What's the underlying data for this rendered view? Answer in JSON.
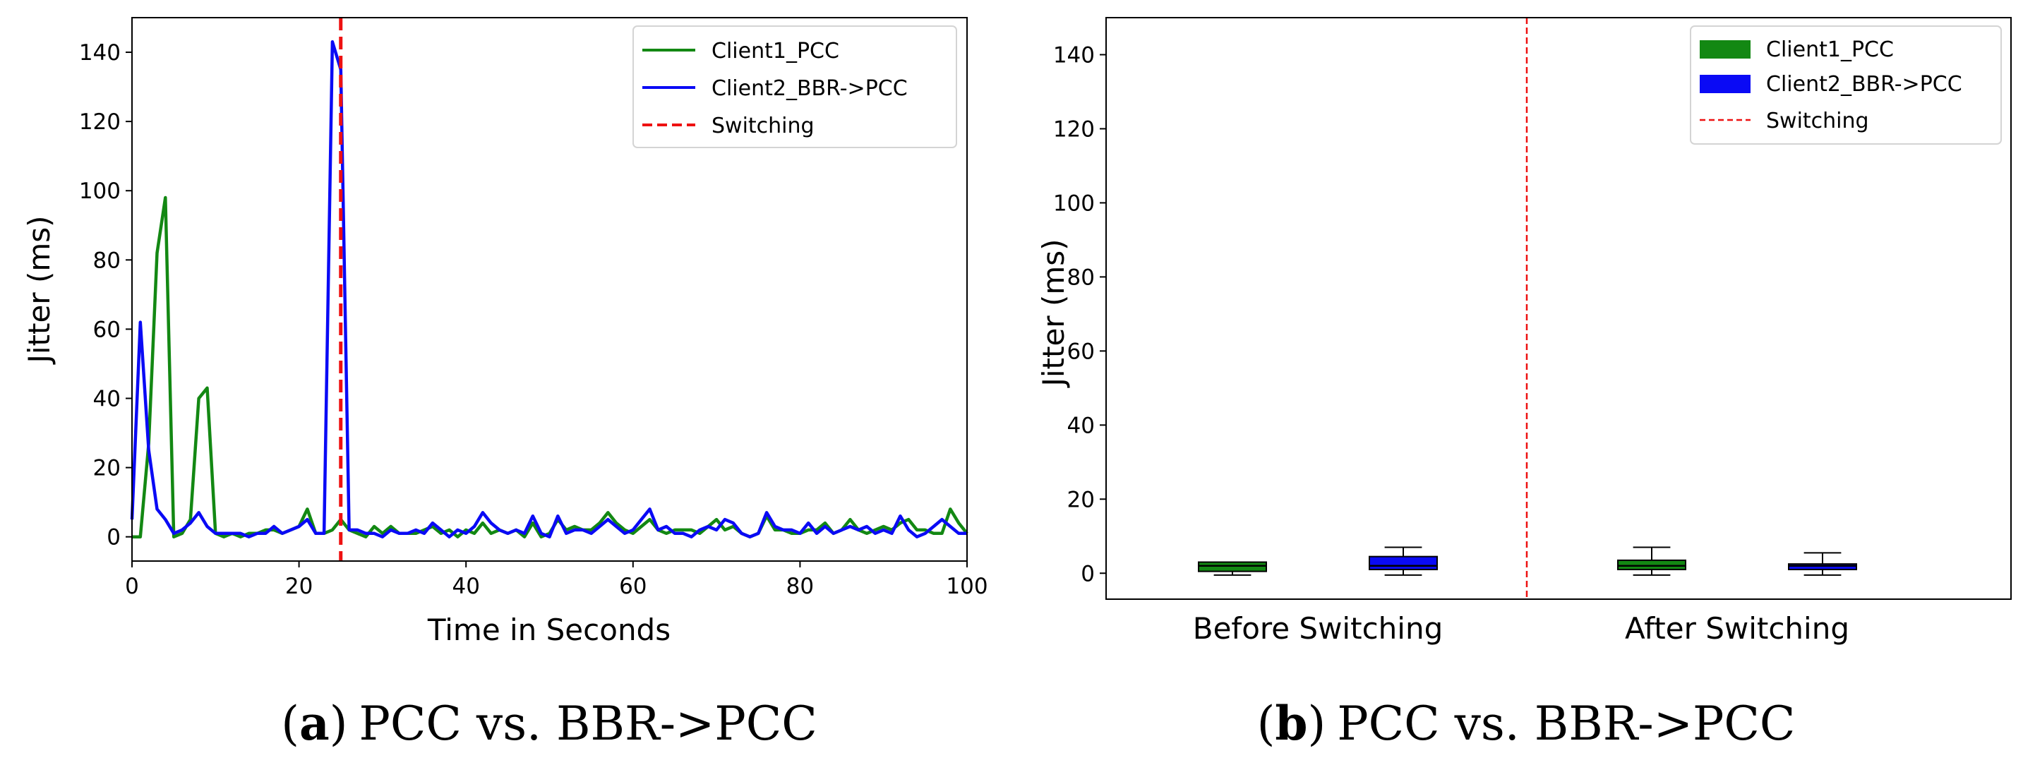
{
  "figure": {
    "caption_a": {
      "open": "(",
      "letter": "a",
      "close": ")",
      "text": "PCC vs. BBR->PCC"
    },
    "caption_b": {
      "open": "(",
      "letter": "b",
      "close": ")",
      "text": "PCC vs. BBR->PCC"
    }
  },
  "chart_data": [
    {
      "type": "line",
      "panel": "a",
      "title": "",
      "xlabel": "Time in Seconds",
      "ylabel": "Jitter (ms)",
      "xlim": [
        0,
        100
      ],
      "ylim": [
        -7,
        150
      ],
      "xticks": [
        0,
        20,
        40,
        60,
        80,
        100
      ],
      "yticks": [
        0,
        20,
        40,
        60,
        80,
        100,
        120,
        140
      ],
      "grid": false,
      "legend_position": "top-right",
      "switching_x": 25,
      "series": [
        {
          "name": "Client1_PCC",
          "color": "#138813",
          "x": [
            0,
            1,
            2,
            3,
            4,
            5,
            6,
            7,
            8,
            9,
            10,
            11,
            12,
            13,
            14,
            15,
            16,
            17,
            18,
            19,
            20,
            21,
            22,
            23,
            24,
            25,
            26,
            27,
            28,
            29,
            30,
            31,
            32,
            33,
            34,
            35,
            36,
            37,
            38,
            39,
            40,
            41,
            42,
            43,
            44,
            45,
            46,
            47,
            48,
            49,
            50,
            51,
            52,
            53,
            54,
            55,
            56,
            57,
            58,
            59,
            60,
            61,
            62,
            63,
            64,
            65,
            66,
            67,
            68,
            69,
            70,
            71,
            72,
            73,
            74,
            75,
            76,
            77,
            78,
            79,
            80,
            81,
            82,
            83,
            84,
            85,
            86,
            87,
            88,
            89,
            90,
            91,
            92,
            93,
            94,
            95,
            96,
            97,
            98,
            99,
            100
          ],
          "y": [
            0,
            0,
            27,
            82,
            98,
            0,
            1,
            5,
            40,
            43,
            1,
            0,
            1,
            0,
            1,
            1,
            2,
            2,
            1,
            2,
            3,
            8,
            1,
            1,
            2,
            5,
            2,
            1,
            0,
            3,
            1,
            3,
            1,
            1,
            1,
            2,
            3,
            1,
            2,
            0,
            2,
            1,
            4,
            1,
            2,
            1,
            2,
            0,
            4,
            0,
            1,
            5,
            2,
            3,
            2,
            2,
            4,
            7,
            4,
            2,
            1,
            3,
            5,
            2,
            1,
            2,
            2,
            2,
            1,
            3,
            5,
            2,
            3,
            1,
            0,
            1,
            6,
            2,
            2,
            1,
            1,
            2,
            2,
            4,
            1,
            2,
            5,
            2,
            1,
            2,
            3,
            2,
            4,
            5,
            2,
            2,
            1,
            1,
            8,
            4,
            1
          ]
        },
        {
          "name": "Client2_BBR->PCC",
          "color": "#0a0af5",
          "x": [
            0,
            1,
            2,
            3,
            4,
            5,
            6,
            7,
            8,
            9,
            10,
            11,
            12,
            13,
            14,
            15,
            16,
            17,
            18,
            19,
            20,
            21,
            22,
            23,
            24,
            25,
            26,
            27,
            28,
            29,
            30,
            31,
            32,
            33,
            34,
            35,
            36,
            37,
            38,
            39,
            40,
            41,
            42,
            43,
            44,
            45,
            46,
            47,
            48,
            49,
            50,
            51,
            52,
            53,
            54,
            55,
            56,
            57,
            58,
            59,
            60,
            61,
            62,
            63,
            64,
            65,
            66,
            67,
            68,
            69,
            70,
            71,
            72,
            73,
            74,
            75,
            76,
            77,
            78,
            79,
            80,
            81,
            82,
            83,
            84,
            85,
            86,
            87,
            88,
            89,
            90,
            91,
            92,
            93,
            94,
            95,
            96,
            97,
            98,
            99,
            100
          ],
          "y": [
            5,
            62,
            25,
            8,
            5,
            1,
            2,
            4,
            7,
            3,
            1,
            1,
            1,
            1,
            0,
            1,
            1,
            3,
            1,
            2,
            3,
            5,
            1,
            1,
            143,
            135,
            2,
            2,
            1,
            1,
            0,
            2,
            1,
            1,
            2,
            1,
            4,
            2,
            0,
            2,
            1,
            3,
            7,
            4,
            2,
            1,
            2,
            1,
            6,
            1,
            0,
            6,
            1,
            2,
            2,
            1,
            3,
            5,
            3,
            1,
            2,
            5,
            8,
            2,
            3,
            1,
            1,
            0,
            2,
            3,
            2,
            5,
            4,
            1,
            0,
            1,
            7,
            3,
            2,
            2,
            1,
            4,
            1,
            3,
            1,
            2,
            3,
            2,
            3,
            1,
            2,
            1,
            6,
            2,
            0,
            1,
            3,
            5,
            3,
            1,
            1
          ]
        }
      ],
      "legend": [
        "Client1_PCC",
        "Client2_BBR->PCC",
        "Switching"
      ]
    },
    {
      "type": "box",
      "panel": "b",
      "title": "",
      "xlabel": "",
      "ylabel": "Jitter (ms)",
      "ylim": [
        -7,
        150
      ],
      "yticks": [
        0,
        20,
        40,
        60,
        80,
        100,
        120,
        140
      ],
      "categories": [
        "Before Switching",
        "After Switching"
      ],
      "grid": false,
      "legend_position": "top-right",
      "legend": [
        "Client1_PCC",
        "Client2_BBR->PCC",
        "Switching"
      ],
      "series": [
        {
          "name": "Client1_PCC",
          "color": "#138813",
          "boxes": [
            {
              "category": "Before Switching",
              "whisker_low": -0.5,
              "q1": 0.5,
              "median": 2,
              "q3": 3,
              "whisker_high": 3
            },
            {
              "category": "After Switching",
              "whisker_low": -0.5,
              "q1": 1,
              "median": 2,
              "q3": 3.5,
              "whisker_high": 7
            }
          ]
        },
        {
          "name": "Client2_BBR->PCC",
          "color": "#0a0af5",
          "boxes": [
            {
              "category": "Before Switching",
              "whisker_low": -0.5,
              "q1": 1,
              "median": 2,
              "q3": 4.5,
              "whisker_high": 7
            },
            {
              "category": "After Switching",
              "whisker_low": -0.5,
              "q1": 1,
              "median": 2,
              "q3": 2.5,
              "whisker_high": 5.5
            }
          ]
        }
      ]
    }
  ]
}
